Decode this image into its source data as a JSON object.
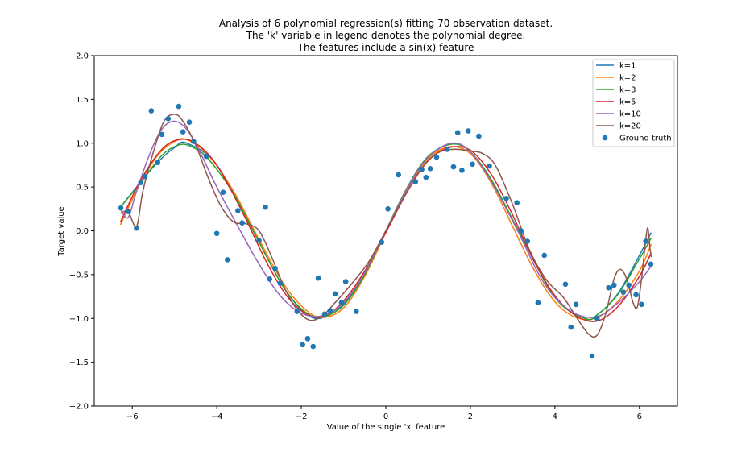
{
  "chart_data": {
    "type": "line",
    "title_lines": [
      "Analysis of 6 polynomial regression(s) fitting 70 observation dataset.",
      "The 'k' variable in legend denotes the polynomial degree.",
      "The features include a sin(x) feature"
    ],
    "xlabel": "Value of the single 'x' feature",
    "ylabel": "Target value",
    "xlim": [
      -6.9,
      6.9
    ],
    "ylim": [
      -2.0,
      2.0
    ],
    "x_ticks": [
      -6,
      -4,
      -2,
      0,
      2,
      4,
      6
    ],
    "y_ticks": [
      -2.0,
      -1.5,
      -1.0,
      -0.5,
      0.0,
      0.5,
      1.0,
      1.5,
      2.0
    ],
    "x_tick_labels": [
      "−6",
      "−4",
      "−2",
      "0",
      "2",
      "4",
      "6"
    ],
    "y_tick_labels": [
      "−2.0",
      "−1.5",
      "−1.0",
      "−0.5",
      "0.0",
      "0.5",
      "1.0",
      "1.5",
      "2.0"
    ],
    "grid": false,
    "legend_position": "top-right",
    "series": [
      {
        "name": "k=1",
        "color": "#1f77b4",
        "points": [
          [
            -6.28,
            0.27
          ],
          [
            -5.5,
            0.73
          ],
          [
            -5.0,
            0.95
          ],
          [
            -4.71,
            1.0
          ],
          [
            -4.0,
            0.75
          ],
          [
            -3.14,
            0.0
          ],
          [
            -2.5,
            -0.58
          ],
          [
            -2.0,
            -0.9
          ],
          [
            -1.57,
            -1.0
          ],
          [
            -1.0,
            -0.84
          ],
          [
            -0.5,
            -0.48
          ],
          [
            0.0,
            0.0
          ],
          [
            0.5,
            0.48
          ],
          [
            1.0,
            0.84
          ],
          [
            1.57,
            1.0
          ],
          [
            2.0,
            0.9
          ],
          [
            2.5,
            0.58
          ],
          [
            3.14,
            0.0
          ],
          [
            4.0,
            -0.75
          ],
          [
            4.71,
            -1.0
          ],
          [
            5.0,
            -0.96
          ],
          [
            5.5,
            -0.71
          ],
          [
            6.0,
            -0.28
          ],
          [
            6.28,
            -0.02
          ]
        ]
      },
      {
        "name": "k=2",
        "color": "#ff7f0e",
        "points": [
          [
            -6.28,
            0.07
          ],
          [
            -5.8,
            0.55
          ],
          [
            -5.4,
            0.86
          ],
          [
            -5.0,
            1.02
          ],
          [
            -4.7,
            1.04
          ],
          [
            -4.2,
            0.86
          ],
          [
            -3.6,
            0.45
          ],
          [
            -3.0,
            -0.1
          ],
          [
            -2.4,
            -0.62
          ],
          [
            -1.9,
            -0.9
          ],
          [
            -1.5,
            -0.99
          ],
          [
            -1.0,
            -0.88
          ],
          [
            -0.5,
            -0.52
          ],
          [
            0.0,
            -0.02
          ],
          [
            0.5,
            0.46
          ],
          [
            1.0,
            0.82
          ],
          [
            1.5,
            0.96
          ],
          [
            2.0,
            0.88
          ],
          [
            2.5,
            0.54
          ],
          [
            3.0,
            0.05
          ],
          [
            3.5,
            -0.44
          ],
          [
            4.0,
            -0.81
          ],
          [
            4.5,
            -0.99
          ],
          [
            5.0,
            -0.99
          ],
          [
            5.5,
            -0.8
          ],
          [
            6.0,
            -0.46
          ],
          [
            6.28,
            -0.15
          ]
        ]
      },
      {
        "name": "k=3",
        "color": "#2ca02c",
        "points": [
          [
            -6.28,
            0.27
          ],
          [
            -5.8,
            0.55
          ],
          [
            -5.3,
            0.86
          ],
          [
            -4.9,
            0.98
          ],
          [
            -4.6,
            0.96
          ],
          [
            -4.2,
            0.82
          ],
          [
            -3.6,
            0.42
          ],
          [
            -3.0,
            -0.13
          ],
          [
            -2.4,
            -0.66
          ],
          [
            -1.9,
            -0.93
          ],
          [
            -1.5,
            -0.98
          ],
          [
            -1.0,
            -0.85
          ],
          [
            -0.5,
            -0.5
          ],
          [
            0.0,
            0.0
          ],
          [
            0.5,
            0.49
          ],
          [
            1.0,
            0.85
          ],
          [
            1.57,
            0.99
          ],
          [
            2.0,
            0.9
          ],
          [
            2.5,
            0.58
          ],
          [
            3.14,
            0.0
          ],
          [
            4.0,
            -0.76
          ],
          [
            4.71,
            -1.0
          ],
          [
            5.0,
            -0.96
          ],
          [
            5.5,
            -0.72
          ],
          [
            6.0,
            -0.32
          ],
          [
            6.28,
            -0.08
          ]
        ]
      },
      {
        "name": "k=5",
        "color": "#d62728",
        "points": [
          [
            -6.28,
            0.1
          ],
          [
            -5.8,
            0.58
          ],
          [
            -5.3,
            0.93
          ],
          [
            -4.9,
            1.04
          ],
          [
            -4.5,
            1.0
          ],
          [
            -4.0,
            0.75
          ],
          [
            -3.4,
            0.22
          ],
          [
            -2.8,
            -0.38
          ],
          [
            -2.3,
            -0.77
          ],
          [
            -1.8,
            -0.97
          ],
          [
            -1.4,
            -0.96
          ],
          [
            -1.0,
            -0.8
          ],
          [
            -0.5,
            -0.46
          ],
          [
            0.0,
            -0.02
          ],
          [
            0.5,
            0.44
          ],
          [
            1.0,
            0.8
          ],
          [
            1.5,
            0.95
          ],
          [
            2.0,
            0.92
          ],
          [
            2.5,
            0.64
          ],
          [
            3.0,
            0.18
          ],
          [
            3.5,
            -0.34
          ],
          [
            4.0,
            -0.74
          ],
          [
            4.5,
            -0.97
          ],
          [
            5.0,
            -1.03
          ],
          [
            5.5,
            -0.86
          ],
          [
            6.0,
            -0.52
          ],
          [
            6.28,
            -0.25
          ]
        ]
      },
      {
        "name": "k=10",
        "color": "#9467bd",
        "points": [
          [
            -6.28,
            0.25
          ],
          [
            -6.1,
            0.15
          ],
          [
            -5.9,
            0.45
          ],
          [
            -5.6,
            0.86
          ],
          [
            -5.3,
            1.16
          ],
          [
            -5.0,
            1.25
          ],
          [
            -4.7,
            1.15
          ],
          [
            -4.4,
            0.9
          ],
          [
            -4.0,
            0.5
          ],
          [
            -3.5,
            0.05
          ],
          [
            -3.0,
            -0.38
          ],
          [
            -2.5,
            -0.74
          ],
          [
            -2.0,
            -0.94
          ],
          [
            -1.5,
            -0.97
          ],
          [
            -1.0,
            -0.82
          ],
          [
            -0.5,
            -0.48
          ],
          [
            0.0,
            0.0
          ],
          [
            0.5,
            0.48
          ],
          [
            1.0,
            0.84
          ],
          [
            1.57,
            1.0
          ],
          [
            2.0,
            0.9
          ],
          [
            2.5,
            0.56
          ],
          [
            3.14,
            -0.02
          ],
          [
            3.6,
            -0.48
          ],
          [
            4.0,
            -0.76
          ],
          [
            4.5,
            -0.95
          ],
          [
            5.0,
            -0.98
          ],
          [
            5.5,
            -0.82
          ],
          [
            6.0,
            -0.58
          ],
          [
            6.28,
            -0.4
          ]
        ]
      },
      {
        "name": "k=20",
        "color": "#8c564b",
        "points": [
          [
            -6.28,
            0.2
          ],
          [
            -6.1,
            0.22
          ],
          [
            -5.9,
            0.05
          ],
          [
            -5.75,
            0.45
          ],
          [
            -5.5,
            0.9
          ],
          [
            -5.25,
            1.25
          ],
          [
            -5.0,
            1.33
          ],
          [
            -4.8,
            1.25
          ],
          [
            -4.5,
            0.98
          ],
          [
            -4.2,
            0.6
          ],
          [
            -3.9,
            0.28
          ],
          [
            -3.6,
            0.1
          ],
          [
            -3.3,
            0.08
          ],
          [
            -3.0,
            0.0
          ],
          [
            -2.7,
            -0.3
          ],
          [
            -2.4,
            -0.65
          ],
          [
            -2.1,
            -0.9
          ],
          [
            -1.8,
            -1.02
          ],
          [
            -1.5,
            -0.97
          ],
          [
            -1.2,
            -0.82
          ],
          [
            -0.8,
            -0.6
          ],
          [
            -0.4,
            -0.35
          ],
          [
            0.0,
            0.0
          ],
          [
            0.4,
            0.36
          ],
          [
            0.8,
            0.68
          ],
          [
            1.2,
            0.88
          ],
          [
            1.6,
            0.93
          ],
          [
            2.0,
            0.91
          ],
          [
            2.3,
            0.88
          ],
          [
            2.6,
            0.74
          ],
          [
            3.0,
            0.3
          ],
          [
            3.4,
            -0.22
          ],
          [
            3.8,
            -0.56
          ],
          [
            4.2,
            -0.76
          ],
          [
            4.5,
            -0.98
          ],
          [
            4.8,
            -1.18
          ],
          [
            5.0,
            -1.19
          ],
          [
            5.2,
            -0.95
          ],
          [
            5.4,
            -0.55
          ],
          [
            5.55,
            -0.44
          ],
          [
            5.7,
            -0.55
          ],
          [
            5.85,
            -0.82
          ],
          [
            5.95,
            -0.87
          ],
          [
            6.05,
            -0.55
          ],
          [
            6.15,
            -0.1
          ],
          [
            6.2,
            0.03
          ],
          [
            6.25,
            -0.2
          ],
          [
            6.28,
            -0.3
          ]
        ]
      }
    ],
    "scatter": {
      "name": "Ground truth",
      "color": "#1f77b4",
      "points": [
        [
          -6.27,
          0.26
        ],
        [
          -6.1,
          0.22
        ],
        [
          -5.9,
          0.03
        ],
        [
          -5.8,
          0.55
        ],
        [
          -5.7,
          0.62
        ],
        [
          -5.55,
          1.37
        ],
        [
          -5.4,
          0.78
        ],
        [
          -5.3,
          1.1
        ],
        [
          -5.15,
          1.28
        ],
        [
          -4.9,
          1.42
        ],
        [
          -4.8,
          1.13
        ],
        [
          -4.65,
          1.24
        ],
        [
          -4.55,
          1.02
        ],
        [
          -4.25,
          0.85
        ],
        [
          -4.0,
          -0.03
        ],
        [
          -3.85,
          0.44
        ],
        [
          -3.75,
          -0.33
        ],
        [
          -3.5,
          0.23
        ],
        [
          -3.4,
          0.09
        ],
        [
          -3.0,
          -0.11
        ],
        [
          -2.85,
          0.27
        ],
        [
          -2.75,
          -0.55
        ],
        [
          -2.62,
          -0.43
        ],
        [
          -2.5,
          -0.6
        ],
        [
          -2.1,
          -0.92
        ],
        [
          -1.97,
          -1.3
        ],
        [
          -1.85,
          -1.23
        ],
        [
          -1.72,
          -1.32
        ],
        [
          -1.6,
          -0.54
        ],
        [
          -1.45,
          -0.95
        ],
        [
          -1.32,
          -0.91
        ],
        [
          -1.2,
          -0.72
        ],
        [
          -1.05,
          -0.82
        ],
        [
          -0.95,
          -0.58
        ],
        [
          -0.7,
          -0.92
        ],
        [
          -0.1,
          -0.13
        ],
        [
          0.05,
          0.25
        ],
        [
          0.3,
          0.64
        ],
        [
          0.7,
          0.56
        ],
        [
          0.85,
          0.7
        ],
        [
          0.95,
          0.61
        ],
        [
          1.05,
          0.71
        ],
        [
          1.2,
          0.84
        ],
        [
          1.45,
          0.93
        ],
        [
          1.6,
          0.73
        ],
        [
          1.7,
          1.12
        ],
        [
          1.8,
          0.69
        ],
        [
          1.95,
          1.14
        ],
        [
          2.05,
          0.76
        ],
        [
          2.2,
          1.08
        ],
        [
          2.45,
          0.74
        ],
        [
          2.85,
          0.37
        ],
        [
          3.1,
          0.32
        ],
        [
          3.2,
          0.0
        ],
        [
          3.35,
          -0.12
        ],
        [
          3.6,
          -0.82
        ],
        [
          3.75,
          -0.28
        ],
        [
          4.25,
          -0.61
        ],
        [
          4.38,
          -1.1
        ],
        [
          4.5,
          -0.84
        ],
        [
          4.88,
          -1.43
        ],
        [
          5.0,
          -1.0
        ],
        [
          5.27,
          -0.65
        ],
        [
          5.4,
          -0.62
        ],
        [
          5.62,
          -0.7
        ],
        [
          5.75,
          -0.62
        ],
        [
          5.92,
          -0.73
        ],
        [
          6.05,
          -0.84
        ],
        [
          6.15,
          -0.12
        ],
        [
          6.27,
          -0.38
        ]
      ]
    }
  }
}
